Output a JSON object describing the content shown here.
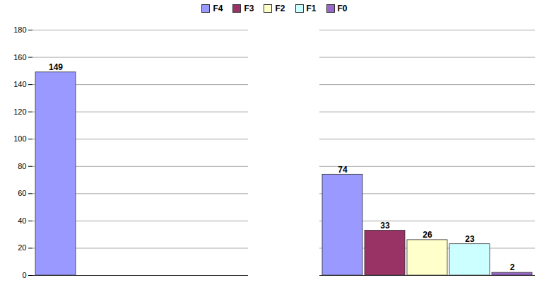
{
  "chart_data": {
    "type": "bar",
    "categories": [
      null,
      null
    ],
    "series": [
      {
        "name": "F4",
        "color": "#9999ff",
        "values": [
          149,
          74
        ],
        "value_labels": [
          "149",
          "74"
        ]
      },
      {
        "name": "F3",
        "color": "#993366",
        "values": [
          0,
          33
        ],
        "value_labels": [
          null,
          "33"
        ]
      },
      {
        "name": "F2",
        "color": "#ffffcc",
        "values": [
          0,
          26
        ],
        "value_labels": [
          null,
          "26"
        ]
      },
      {
        "name": "F1",
        "color": "#ccffff",
        "values": [
          0,
          23
        ],
        "value_labels": [
          null,
          "23"
        ]
      },
      {
        "name": "F0",
        "color": "#9966cc",
        "values": [
          0,
          2
        ],
        "value_labels": [
          null,
          "2"
        ]
      }
    ],
    "ylim": [
      0,
      180
    ],
    "yticks": [
      0,
      20,
      40,
      60,
      80,
      100,
      120,
      140,
      160,
      180
    ],
    "grid": true,
    "legend": "top",
    "data_labels": true
  }
}
